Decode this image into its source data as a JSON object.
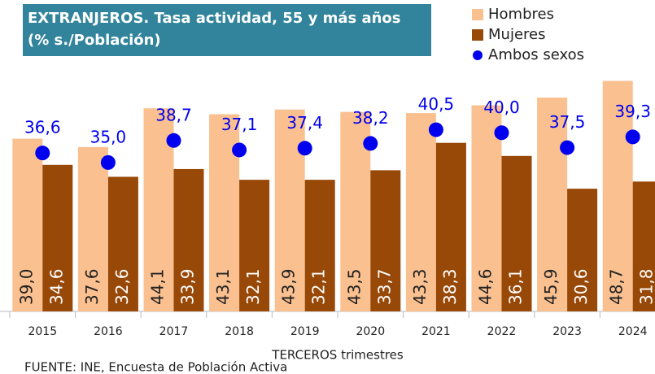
{
  "chart_data": {
    "type": "bar",
    "title": "EXTRANJEROS. Tasa actividad, 55 y más años (% s./Población)",
    "xlabel": "TERCEROS trimestres",
    "source": "FUENTE: INE, Encuesta de Población Activa",
    "categories": [
      "2015",
      "2016",
      "2017",
      "2018",
      "2019",
      "2020",
      "2021",
      "2022",
      "2023",
      "2024"
    ],
    "ylim": [
      10,
      50
    ],
    "series": [
      {
        "name": "Hombres",
        "type": "bar",
        "color": "#fac090",
        "values": [
          39.0,
          37.6,
          44.1,
          43.1,
          43.9,
          43.5,
          43.3,
          44.6,
          45.9,
          48.7
        ],
        "value_labels": [
          "39,0",
          "37,6",
          "44,1",
          "43,1",
          "43,9",
          "43,5",
          "43,3",
          "44,6",
          "45,9",
          "48,7"
        ]
      },
      {
        "name": "Mujeres",
        "type": "bar",
        "color": "#984807",
        "values": [
          34.6,
          32.6,
          33.9,
          32.1,
          32.1,
          33.7,
          38.3,
          36.1,
          30.6,
          31.8
        ],
        "value_labels": [
          "34,6",
          "32,6",
          "33,9",
          "32,1",
          "32,1",
          "33,7",
          "38,3",
          "36,1",
          "30,6",
          "31,8"
        ]
      },
      {
        "name": "Ambos sexos",
        "type": "scatter",
        "color": "#0000ee",
        "values": [
          36.6,
          35.0,
          38.7,
          37.1,
          37.4,
          38.2,
          40.5,
          40.0,
          37.5,
          39.3
        ],
        "value_labels": [
          "36,6",
          "35,0",
          "38,7",
          "37,1",
          "37,4",
          "38,2",
          "40,5",
          "40,0",
          "37,5",
          "39,3"
        ]
      }
    ]
  }
}
